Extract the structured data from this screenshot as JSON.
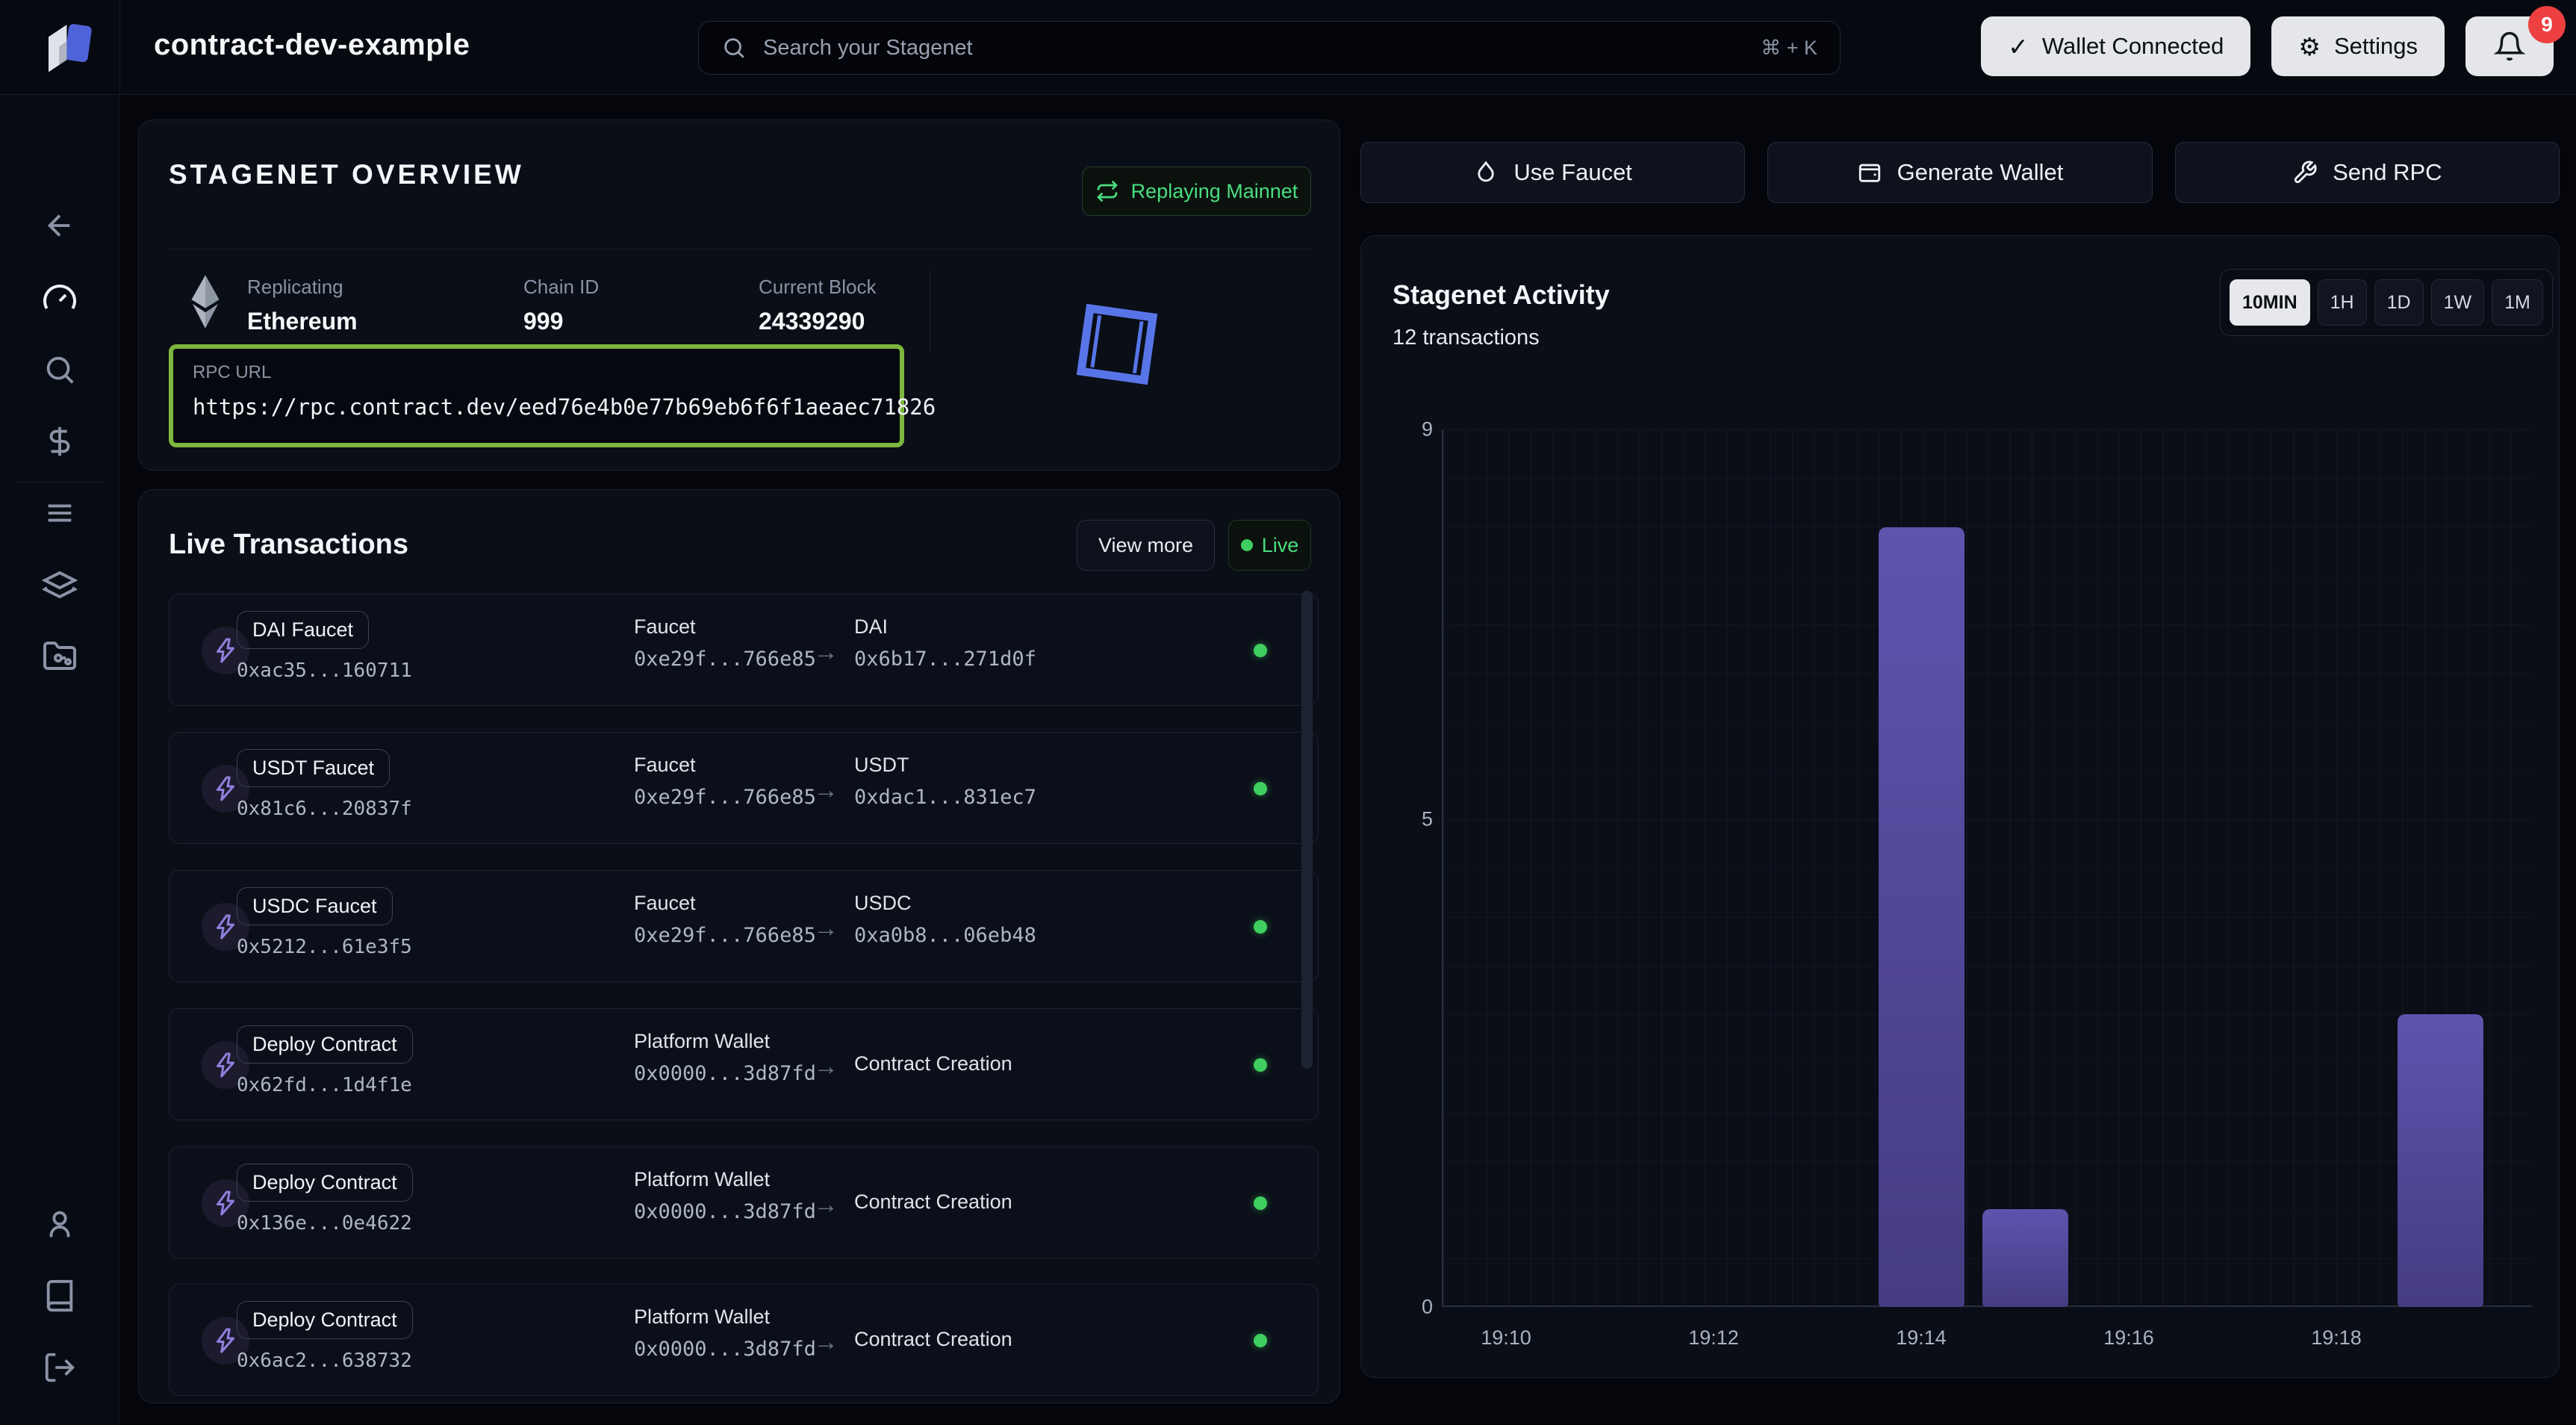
{
  "app": {
    "title": "contract-dev-example"
  },
  "topbar": {
    "search_placeholder": "Search your Stagenet",
    "search_shortcut": "⌘ + K",
    "wallet_button": "Wallet Connected",
    "wallet_check": "✓",
    "settings_button": "Settings",
    "settings_glyph": "⚙",
    "notification_count": "9"
  },
  "sidebar": {
    "icons": [
      "arrow-left-icon",
      "gauge-icon",
      "search-icon",
      "dollar-icon",
      "menu-icon",
      "layers-icon",
      "folder-git-icon",
      "user-icon",
      "book-icon",
      "logout-icon"
    ],
    "active_icon": "gauge-icon"
  },
  "overview": {
    "title": "STAGENET OVERVIEW",
    "badge": "Replaying Mainnet",
    "replicating_label": "Replicating",
    "replicating_value": "Ethereum",
    "chain_id_label": "Chain ID",
    "chain_id_value": "999",
    "current_block_label": "Current Block",
    "current_block_value": "24339290",
    "rpc_label": "RPC URL",
    "rpc_url": "https://rpc.contract.dev/eed76e4b0e77b69eb6f6f1aeaec71826"
  },
  "transactions": {
    "title": "Live Transactions",
    "view_more": "View more",
    "live_badge": "Live",
    "rows": [
      {
        "badge": "DAI Faucet",
        "hash": "0xac35...160711",
        "from_label": "Faucet",
        "from_hash": "0xe29f...766e85",
        "to_label": "DAI",
        "to_hash": "0x6b17...271d0f"
      },
      {
        "badge": "USDT Faucet",
        "hash": "0x81c6...20837f",
        "from_label": "Faucet",
        "from_hash": "0xe29f...766e85",
        "to_label": "USDT",
        "to_hash": "0xdac1...831ec7"
      },
      {
        "badge": "USDC Faucet",
        "hash": "0x5212...61e3f5",
        "from_label": "Faucet",
        "from_hash": "0xe29f...766e85",
        "to_label": "USDC",
        "to_hash": "0xa0b8...06eb48"
      },
      {
        "badge": "Deploy Contract",
        "hash": "0x62fd...1d4f1e",
        "from_label": "Platform Wallet",
        "from_hash": "0x0000...3d87fd",
        "to_label": "Contract Creation",
        "to_hash": ""
      },
      {
        "badge": "Deploy Contract",
        "hash": "0x136e...0e4622",
        "from_label": "Platform Wallet",
        "from_hash": "0x0000...3d87fd",
        "to_label": "Contract Creation",
        "to_hash": ""
      },
      {
        "badge": "Deploy Contract",
        "hash": "0x6ac2...638732",
        "from_label": "Platform Wallet",
        "from_hash": "0x0000...3d87fd",
        "to_label": "Contract Creation",
        "to_hash": ""
      }
    ],
    "arrow_glyph": "→"
  },
  "actions": {
    "use_faucet": "Use Faucet",
    "generate_wallet": "Generate Wallet",
    "send_rpc": "Send RPC"
  },
  "activity": {
    "title": "Stagenet Activity",
    "subtitle": "12 transactions",
    "ranges": [
      "10MIN",
      "1H",
      "1D",
      "1W",
      "1M"
    ],
    "active_range": "10MIN"
  },
  "chart_data": {
    "type": "bar",
    "title": "Stagenet Activity",
    "total_label": "12 transactions",
    "x_ticks": [
      "19:10",
      "19:12",
      "19:14",
      "19:16",
      "19:18"
    ],
    "bars": [
      {
        "time": "19:14",
        "value": 8
      },
      {
        "time": "19:15",
        "value": 1
      },
      {
        "time": "19:19",
        "value": 3
      }
    ],
    "y_ticks": [
      0,
      5,
      9
    ],
    "ylim": [
      0,
      9
    ],
    "x_window_minutes": 10,
    "grid": true,
    "legend": "none",
    "bar_color_top": "#5e54ae",
    "bar_color_bottom": "#453c82",
    "accent_green": "#4ade80",
    "rpc_highlight_green": "#7cb63e",
    "square_blue": "#5875e8"
  }
}
